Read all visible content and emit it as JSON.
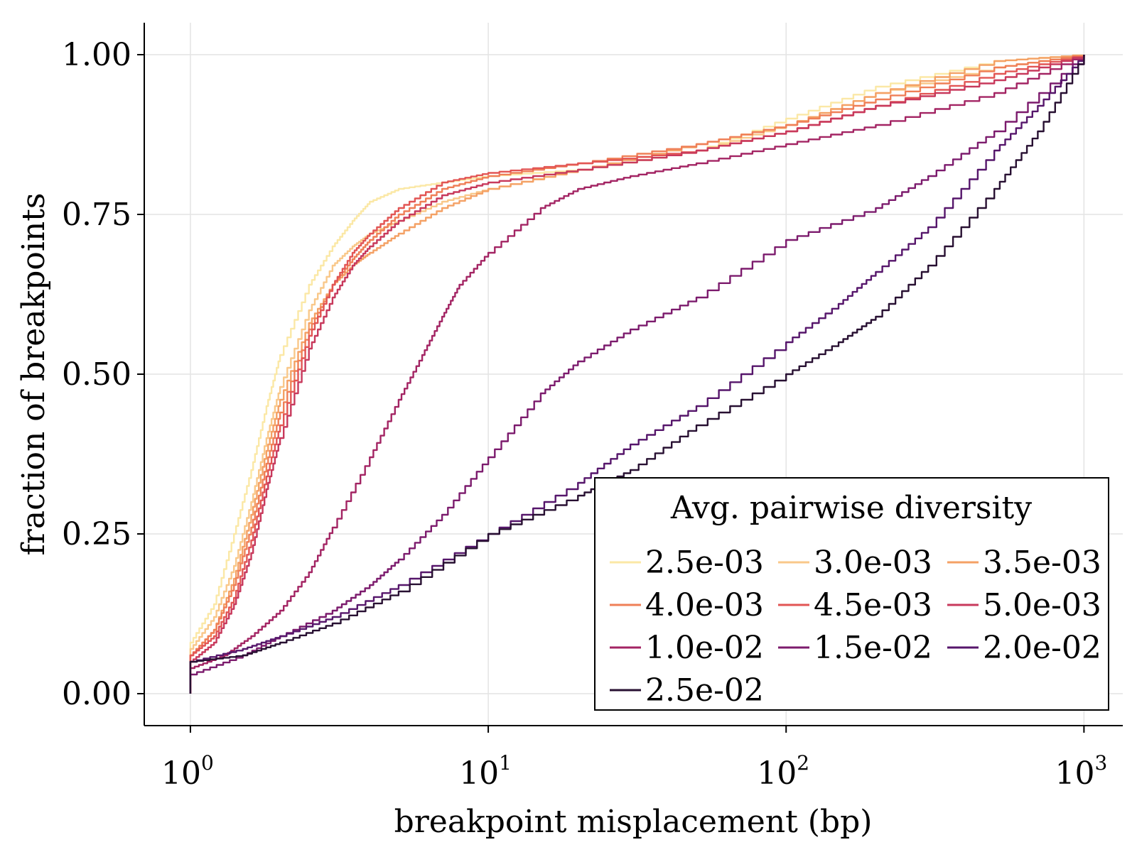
{
  "chart_data": {
    "type": "line",
    "xlabel": "breakpoint misplacement (bp)",
    "ylabel": "fraction of breakpoints",
    "x_scale": "log10",
    "xlim": [
      0.7,
      1350
    ],
    "ylim": [
      -0.05,
      1.05
    ],
    "grid": true,
    "x_ticks": [
      {
        "value": 1,
        "base": "10",
        "exp": "0"
      },
      {
        "value": 10,
        "base": "10",
        "exp": "1"
      },
      {
        "value": 100,
        "base": "10",
        "exp": "2"
      },
      {
        "value": 1000,
        "base": "10",
        "exp": "3"
      }
    ],
    "y_ticks": [
      {
        "value": 0,
        "label": "0.00"
      },
      {
        "value": 0.25,
        "label": "0.25"
      },
      {
        "value": 0.5,
        "label": "0.50"
      },
      {
        "value": 0.75,
        "label": "0.75"
      },
      {
        "value": 1,
        "label": "1.00"
      }
    ],
    "legend": {
      "title": "Avg. pairwise diversity",
      "placement": "bottom-right",
      "columns": 3
    },
    "series": [
      {
        "name": "2.5e-03",
        "color": "#fbe8a6",
        "x": [
          1,
          1.2,
          1.4,
          1.6,
          1.8,
          2,
          2.5,
          3,
          3.5,
          4,
          5,
          7,
          10,
          20,
          50,
          100,
          200,
          500,
          1000
        ],
        "y": [
          0.08,
          0.14,
          0.25,
          0.35,
          0.45,
          0.53,
          0.64,
          0.7,
          0.74,
          0.77,
          0.79,
          0.8,
          0.81,
          0.82,
          0.85,
          0.9,
          0.95,
          0.99,
          1.0
        ]
      },
      {
        "name": "3.0e-03",
        "color": "#f9c88a",
        "x": [
          1,
          1.2,
          1.4,
          1.6,
          1.8,
          2,
          2.5,
          3,
          3.5,
          4,
          5,
          7,
          10,
          20,
          50,
          100,
          200,
          500,
          1000
        ],
        "y": [
          0.07,
          0.12,
          0.2,
          0.3,
          0.4,
          0.48,
          0.6,
          0.67,
          0.7,
          0.72,
          0.74,
          0.77,
          0.79,
          0.82,
          0.85,
          0.89,
          0.94,
          0.98,
          1.0
        ]
      },
      {
        "name": "3.5e-03",
        "color": "#f4a165",
        "x": [
          1,
          1.2,
          1.4,
          1.6,
          1.8,
          2,
          2.5,
          3,
          3.5,
          4,
          5,
          7,
          10,
          20,
          50,
          100,
          200,
          500,
          1000
        ],
        "y": [
          0.06,
          0.1,
          0.18,
          0.28,
          0.38,
          0.46,
          0.58,
          0.64,
          0.67,
          0.69,
          0.72,
          0.76,
          0.79,
          0.82,
          0.86,
          0.89,
          0.94,
          0.99,
          1.0
        ]
      },
      {
        "name": "4.0e-03",
        "color": "#ef7f57",
        "x": [
          1,
          1.2,
          1.4,
          1.6,
          1.8,
          2,
          2.5,
          3,
          3.5,
          4,
          5,
          7,
          10,
          20,
          50,
          100,
          200,
          500,
          1000
        ],
        "y": [
          0.06,
          0.1,
          0.17,
          0.26,
          0.36,
          0.44,
          0.57,
          0.64,
          0.68,
          0.71,
          0.75,
          0.79,
          0.81,
          0.83,
          0.86,
          0.89,
          0.93,
          0.98,
          1.0
        ]
      },
      {
        "name": "4.5e-03",
        "color": "#e25554",
        "x": [
          1,
          1.2,
          1.4,
          1.6,
          1.8,
          2,
          2.5,
          3,
          3.5,
          4,
          5,
          7,
          10,
          20,
          50,
          100,
          200,
          500,
          1000
        ],
        "y": [
          0.06,
          0.09,
          0.15,
          0.24,
          0.34,
          0.42,
          0.56,
          0.64,
          0.69,
          0.72,
          0.76,
          0.8,
          0.815,
          0.83,
          0.85,
          0.88,
          0.92,
          0.97,
          1.0
        ]
      },
      {
        "name": "5.0e-03",
        "color": "#c8395c",
        "x": [
          1,
          1.2,
          1.4,
          1.6,
          1.8,
          2,
          2.5,
          3,
          3.5,
          4,
          5,
          7,
          10,
          20,
          50,
          100,
          200,
          500,
          1000
        ],
        "y": [
          0.05,
          0.08,
          0.14,
          0.22,
          0.32,
          0.4,
          0.54,
          0.62,
          0.67,
          0.7,
          0.74,
          0.78,
          0.8,
          0.82,
          0.85,
          0.88,
          0.92,
          0.96,
          1.0
        ]
      },
      {
        "name": "1.0e-02",
        "color": "#a32463",
        "x": [
          1,
          1.3,
          1.6,
          2,
          2.5,
          3,
          4,
          5,
          6,
          7,
          8,
          10,
          15,
          20,
          30,
          50,
          100,
          200,
          500,
          1000
        ],
        "y": [
          0.04,
          0.06,
          0.09,
          0.13,
          0.19,
          0.26,
          0.37,
          0.46,
          0.53,
          0.59,
          0.64,
          0.69,
          0.76,
          0.79,
          0.81,
          0.83,
          0.86,
          0.89,
          0.94,
          1.0
        ]
      },
      {
        "name": "1.5e-02",
        "color": "#7c1b6d",
        "x": [
          1,
          1.5,
          2,
          3,
          4,
          5,
          7,
          10,
          15,
          20,
          30,
          50,
          100,
          200,
          300,
          500,
          1000
        ],
        "y": [
          0.03,
          0.06,
          0.09,
          0.13,
          0.17,
          0.21,
          0.28,
          0.37,
          0.47,
          0.52,
          0.57,
          0.62,
          0.71,
          0.76,
          0.81,
          0.88,
          1.0
        ]
      },
      {
        "name": "2.0e-02",
        "color": "#56166b",
        "x": [
          1,
          1.5,
          2,
          3,
          5,
          10,
          20,
          30,
          50,
          100,
          150,
          200,
          300,
          500,
          700,
          1000
        ],
        "y": [
          0.05,
          0.07,
          0.09,
          0.12,
          0.17,
          0.25,
          0.33,
          0.39,
          0.45,
          0.55,
          0.61,
          0.66,
          0.73,
          0.85,
          0.92,
          1.0
        ]
      },
      {
        "name": "2.5e-02",
        "color": "#281032",
        "x": [
          1,
          1.5,
          2,
          3,
          5,
          10,
          20,
          30,
          50,
          100,
          150,
          200,
          300,
          500,
          700,
          1000
        ],
        "y": [
          0.05,
          0.06,
          0.08,
          0.11,
          0.16,
          0.25,
          0.31,
          0.35,
          0.42,
          0.5,
          0.55,
          0.59,
          0.67,
          0.79,
          0.88,
          1.0
        ]
      }
    ]
  }
}
